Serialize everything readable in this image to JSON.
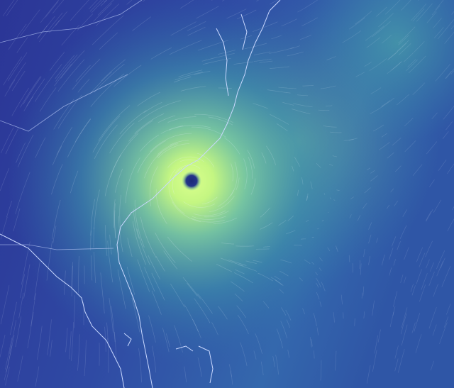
{
  "map": {
    "type": "wind-streamline-map",
    "colors": {
      "background_low": "#2b3596",
      "background_mid": "#2f5aa8",
      "ocean_mid": "#3a8aa8",
      "wind_high": "#b9f27a",
      "wind_peak": "#dcff8c",
      "eye": "#1c2a78",
      "coastline": "#c9d8ff",
      "streamline": "#e8f4ff"
    },
    "features": {
      "storm_eye": "hurricane-eye",
      "coastline": "us-east-coast-coastline",
      "state_borders": "state-border-lines"
    }
  }
}
